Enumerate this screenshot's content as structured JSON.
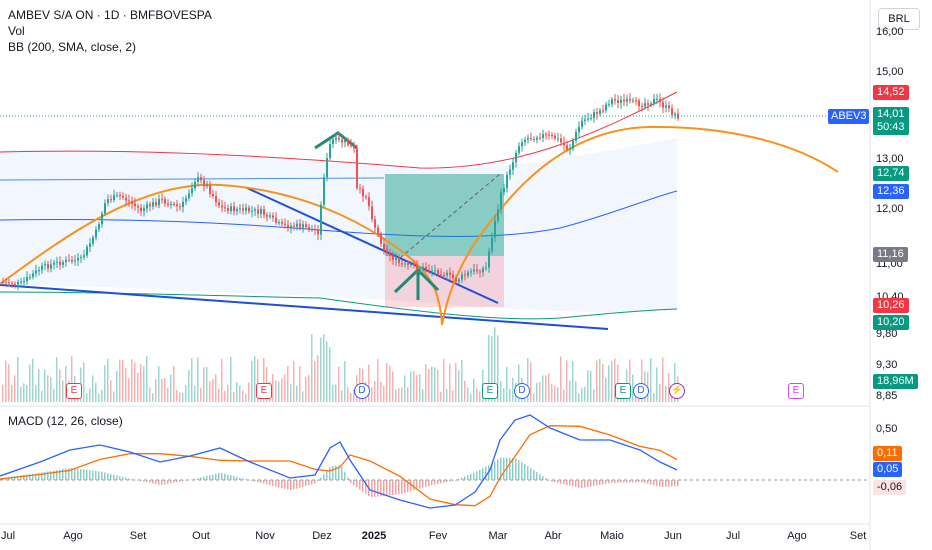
{
  "header": {
    "title": "AMBEV S/A ON · 1D · BMFBOVESPA",
    "vol_label": "Vol",
    "bb_label": "BB (200, SMA, close, 2)",
    "currency": "BRL"
  },
  "macd": {
    "label": "MACD (12, 26, close)"
  },
  "price_axis": {
    "ticks": [
      "16,00",
      "15,00",
      "13,00",
      "12,00",
      "11,00",
      "10,40",
      "9,80",
      "9,30",
      "8,85"
    ],
    "macd_ticks": [
      "0,50"
    ]
  },
  "tags": {
    "symbol": "ABEV3",
    "bb_upper": "14,52",
    "last": "14,01",
    "countdown": "50:43",
    "tag_1274": "12,74",
    "tag_1236": "12,36",
    "tag_1116": "11,16",
    "tag_1026": "10,26",
    "tag_1020": "10,20",
    "volume": "18,96M",
    "macd_signal": "0,11",
    "macd_line": "0,05",
    "macd_hist": "-0,06"
  },
  "time_axis": [
    "Jul",
    "Ago",
    "Set",
    "Out",
    "Nov",
    "Dez",
    "2025",
    "Fev",
    "Mar",
    "Abr",
    "Maio",
    "Jun",
    "Jul",
    "Ago",
    "Set"
  ],
  "events": [
    {
      "letter": "E",
      "kind": "earnings"
    },
    {
      "letter": "E",
      "kind": "earnings"
    },
    {
      "letter": "D",
      "kind": "dividend"
    },
    {
      "letter": "E",
      "kind": "earnings"
    },
    {
      "letter": "D",
      "kind": "dividend"
    },
    {
      "letter": "E",
      "kind": "earnings"
    },
    {
      "letter": "D",
      "kind": "dividend"
    },
    {
      "letter": "⚡",
      "kind": "split"
    },
    {
      "letter": "E",
      "kind": "future-earnings"
    }
  ],
  "colors": {
    "up": "#26a69a",
    "down": "#ef5350",
    "bb_upper": "#f23645",
    "bb_basis": "#2962ff",
    "bb_lower": "#089981",
    "ma_orange": "#f7931a",
    "trendline": "#1e4fd8",
    "macd_line": "#2962ff",
    "signal_line": "#ff6d00"
  }
}
